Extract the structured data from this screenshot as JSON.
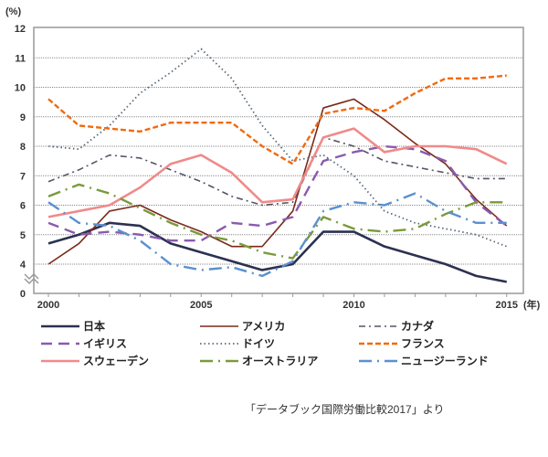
{
  "chart_data": {
    "type": "line",
    "title": "",
    "ylabel": "(%)",
    "xlabel": "(年)",
    "ylim": [
      0,
      12
    ],
    "y_axis_break": [
      0,
      4
    ],
    "yticks": [
      "0",
      "4",
      "5",
      "6",
      "7",
      "8",
      "9",
      "10",
      "11",
      "12"
    ],
    "xticks": [
      "2000",
      "2005",
      "2010",
      "2015"
    ],
    "grid": true,
    "legend_position": "bottom",
    "x": [
      2000,
      2001,
      2002,
      2003,
      2004,
      2005,
      2006,
      2007,
      2008,
      2009,
      2010,
      2011,
      2012,
      2013,
      2014,
      2015
    ],
    "series": [
      {
        "name": "日本",
        "color": "#2b3150",
        "style": "solid-thick",
        "values": [
          4.7,
          5.0,
          5.4,
          5.3,
          4.7,
          4.4,
          4.1,
          3.8,
          4.0,
          5.1,
          5.1,
          4.6,
          4.3,
          4.0,
          3.6,
          3.4
        ]
      },
      {
        "name": "アメリカ",
        "color": "#7a2a1a",
        "style": "solid",
        "values": [
          4.0,
          4.7,
          5.8,
          6.0,
          5.5,
          5.1,
          4.6,
          4.6,
          5.8,
          9.3,
          9.6,
          8.9,
          8.1,
          7.4,
          6.2,
          5.3
        ]
      },
      {
        "name": "カナダ",
        "color": "#555566",
        "style": "dash-dot",
        "values": [
          6.8,
          7.2,
          7.7,
          7.6,
          7.2,
          6.8,
          6.3,
          6.0,
          6.1,
          8.3,
          8.0,
          7.5,
          7.3,
          7.1,
          6.9,
          6.9
        ]
      },
      {
        "name": "イギリス",
        "color": "#8a5ab0",
        "style": "long-dash",
        "values": [
          5.4,
          5.0,
          5.1,
          5.0,
          4.8,
          4.8,
          5.4,
          5.3,
          5.6,
          7.5,
          7.8,
          8.0,
          7.9,
          7.5,
          6.1,
          5.3
        ]
      },
      {
        "name": "ドイツ",
        "color": "#5a6a7a",
        "style": "dotted",
        "values": [
          8.0,
          7.9,
          8.7,
          9.8,
          10.5,
          11.3,
          10.3,
          8.7,
          7.5,
          7.7,
          7.0,
          5.8,
          5.4,
          5.2,
          5.0,
          4.6
        ]
      },
      {
        "name": "フランス",
        "color": "#f06a10",
        "style": "dashed",
        "values": [
          9.6,
          8.7,
          8.6,
          8.5,
          8.8,
          8.8,
          8.8,
          8.0,
          7.4,
          9.1,
          9.3,
          9.2,
          9.8,
          10.3,
          10.3,
          10.4
        ]
      },
      {
        "name": "スウェーデン",
        "color": "#f08a8a",
        "style": "solid-thick",
        "values": [
          5.6,
          5.8,
          6.0,
          6.6,
          7.4,
          7.7,
          7.1,
          6.1,
          6.2,
          8.3,
          8.6,
          7.8,
          8.0,
          8.0,
          7.9,
          7.4
        ]
      },
      {
        "name": "オーストラリア",
        "color": "#7a9a3a",
        "style": "long-dash-dot",
        "values": [
          6.3,
          6.7,
          6.4,
          5.9,
          5.4,
          5.0,
          4.8,
          4.4,
          4.2,
          5.6,
          5.2,
          5.1,
          5.2,
          5.7,
          6.1,
          6.1
        ]
      },
      {
        "name": "ニュージーランド",
        "color": "#5a90d0",
        "style": "long-dash-dot",
        "values": [
          6.1,
          5.4,
          5.3,
          4.8,
          4.0,
          3.8,
          3.9,
          3.6,
          4.1,
          5.8,
          6.1,
          6.0,
          6.4,
          5.8,
          5.4,
          5.4
        ]
      }
    ]
  },
  "source_note": "「データブック国際労働比較2017」より"
}
